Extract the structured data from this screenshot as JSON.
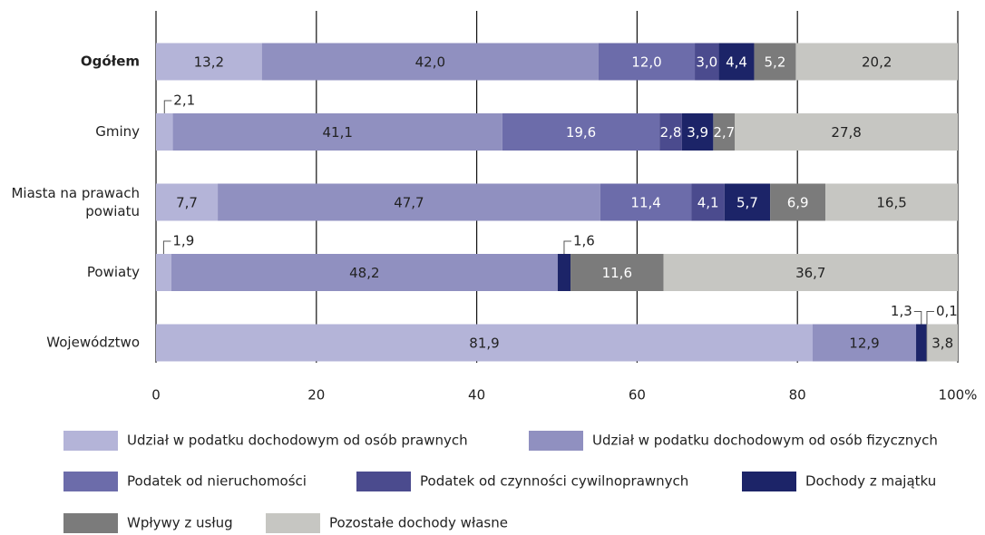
{
  "chart_data": {
    "type": "stacked_barh",
    "categories": [
      "Ogółem",
      "Gminy",
      "Miasta na prawach powiatu",
      "Powiaty",
      "Województwo"
    ],
    "series": [
      {
        "name": "Udział w podatku dochodowym od osób prawnych",
        "color": "#b4b4d8",
        "values": [
          13.2,
          2.1,
          7.7,
          1.9,
          81.9
        ],
        "value_labels": [
          "13,2",
          "2,1",
          "7,7",
          "1,9",
          "81,9"
        ]
      },
      {
        "name": "Udział w podatku dochodowym od osób fizycznych",
        "color": "#9090c0",
        "values": [
          42.0,
          41.1,
          47.7,
          48.2,
          12.9
        ],
        "value_labels": [
          "42,0",
          "41,1",
          "47,7",
          "48,2",
          "12,9"
        ]
      },
      {
        "name": "Podatek od nieruchomości",
        "color": "#6c6caa",
        "values": [
          12.0,
          19.6,
          11.4,
          null,
          null
        ],
        "value_labels": [
          "12,0",
          "19,6",
          "11,4",
          null,
          null
        ]
      },
      {
        "name": "Podatek od czynności cywilnoprawnych",
        "color": "#4b4b8e",
        "values": [
          3.0,
          2.8,
          4.1,
          null,
          null
        ],
        "value_labels": [
          "3,0",
          "2,8",
          "4,1",
          null,
          null
        ]
      },
      {
        "name": "Dochody z majątku",
        "color": "#1c2468",
        "values": [
          4.4,
          3.9,
          5.7,
          1.6,
          1.3
        ],
        "value_labels": [
          "4,4",
          "3,9",
          "5,7",
          "1,6",
          "1,3"
        ]
      },
      {
        "name": "Wpływy z usług",
        "color": "#7b7b7b",
        "values": [
          5.2,
          2.7,
          6.9,
          11.6,
          0.1
        ],
        "value_labels": [
          "5,2",
          "2,7",
          "6,9",
          "11,6",
          "0,1"
        ]
      },
      {
        "name": "Pozostałe dochody własne",
        "color": "#c6c6c2",
        "values": [
          20.2,
          27.8,
          16.5,
          36.7,
          3.8
        ],
        "value_labels": [
          "20,2",
          "27,8",
          "16,5",
          "36,7",
          "3,8"
        ]
      }
    ],
    "xlim": [
      0,
      100
    ],
    "xticks": [
      0,
      20,
      40,
      60,
      80,
      {
        "value": 100,
        "label": "100%"
      }
    ],
    "grid": true
  }
}
